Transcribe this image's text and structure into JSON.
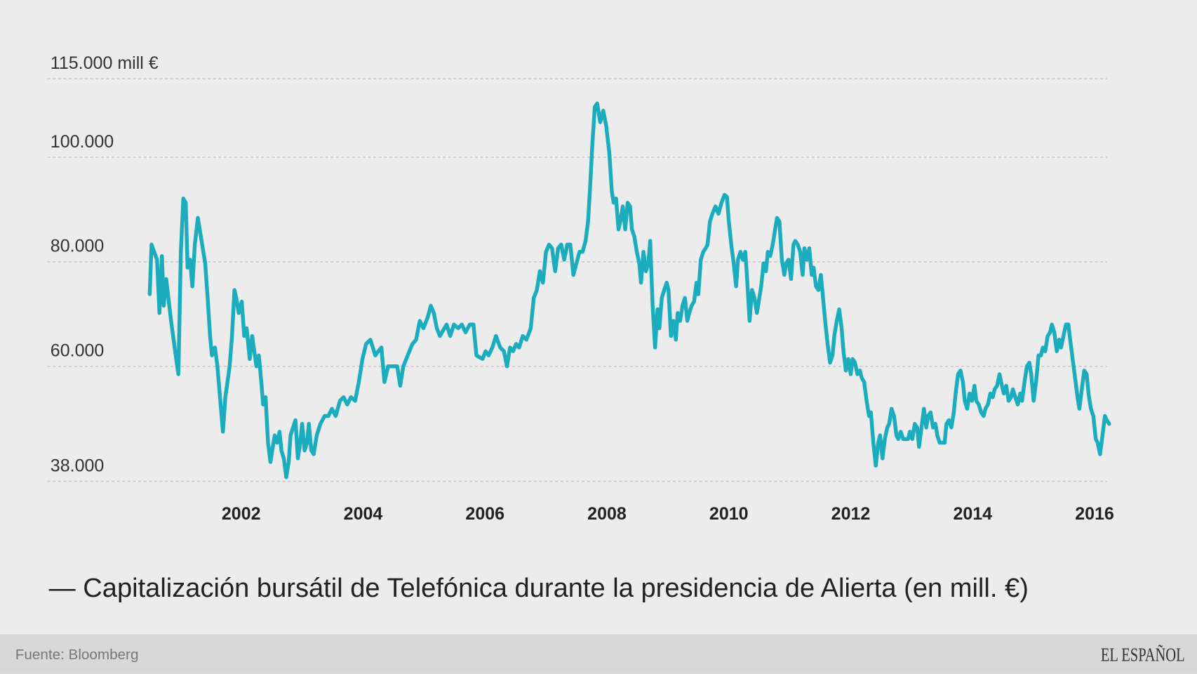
{
  "chart_data": {
    "type": "line",
    "title": "— Capitalización bursátil de Telefónica durante la presidencia de Alierta (en mill. €)",
    "source": "Fuente: Bloomberg",
    "brand": "EL ESPAÑOL",
    "xlim": [
      1998.82,
      2016.24
    ],
    "xticks": [
      2002,
      2004,
      2006,
      2008,
      2010,
      2012,
      2014,
      2016
    ],
    "ylim": [
      38000,
      115000
    ],
    "yticks": [
      {
        "value": 38000,
        "label": "38.000"
      },
      {
        "value": 60000,
        "label": "60.000"
      },
      {
        "value": 80000,
        "label": "80.000"
      },
      {
        "value": 100000,
        "label": "100.000"
      },
      {
        "value": 115000,
        "label": "115.000 mill €"
      }
    ],
    "grid": true,
    "x": [
      2000.5,
      2000.53,
      2000.62,
      2000.66,
      2000.7,
      2000.73,
      2000.77,
      2000.85,
      2000.95,
      2000.97,
      2001.01,
      2001.05,
      2001.09,
      2001.12,
      2001.16,
      2001.2,
      2001.24,
      2001.29,
      2001.36,
      2001.41,
      2001.45,
      2001.49,
      2001.52,
      2001.57,
      2001.61,
      2001.7,
      2001.74,
      2001.81,
      2001.85,
      2001.89,
      2001.92,
      2001.96,
      2002.01,
      2002.05,
      2002.09,
      2002.14,
      2002.18,
      2002.25,
      2002.29,
      2002.33,
      2002.36,
      2002.4,
      2002.44,
      2002.48,
      2002.51,
      2002.55,
      2002.59,
      2002.63,
      2002.66,
      2002.7,
      2002.74,
      2002.78,
      2002.81,
      2002.85,
      2002.89,
      2002.93,
      2002.96,
      2003.0,
      2003.04,
      2003.08,
      2003.11,
      2003.15,
      2003.19,
      2003.24,
      2003.3,
      2003.37,
      2003.43,
      2003.49,
      2003.55,
      2003.62,
      2003.68,
      2003.74,
      2003.8,
      2003.87,
      2003.93,
      2003.99,
      2004.05,
      2004.12,
      2004.2,
      2004.25,
      2004.3,
      2004.35,
      2004.41,
      2004.51,
      2004.56,
      2004.61,
      2004.66,
      2004.76,
      2004.81,
      2004.87,
      2004.93,
      2004.99,
      2005.06,
      2005.11,
      2005.16,
      2005.21,
      2005.26,
      2005.37,
      2005.43,
      2005.49,
      2005.56,
      2005.62,
      2005.68,
      2005.75,
      2005.81,
      2005.86,
      2005.96,
      2006.01,
      2006.06,
      2006.12,
      2006.18,
      2006.25,
      2006.31,
      2006.36,
      2006.41,
      2006.46,
      2006.51,
      2006.56,
      2006.62,
      2006.68,
      2006.75,
      2006.8,
      2006.85,
      2006.9,
      2006.95,
      2007.0,
      2007.05,
      2007.1,
      2007.15,
      2007.2,
      2007.25,
      2007.3,
      2007.35,
      2007.4,
      2007.45,
      2007.5,
      2007.55,
      2007.6,
      2007.65,
      2007.69,
      2007.72,
      2007.76,
      2007.8,
      2007.84,
      2007.89,
      2007.94,
      2007.99,
      2008.04,
      2008.08,
      2008.11,
      2008.15,
      2008.19,
      2008.23,
      2008.26,
      2008.3,
      2008.34,
      2008.38,
      2008.41,
      2008.45,
      2008.49,
      2008.53,
      2008.56,
      2008.6,
      2008.64,
      2008.68,
      2008.71,
      2008.75,
      2008.79,
      2008.83,
      2008.86,
      2008.9,
      2008.94,
      2008.98,
      2009.01,
      2009.05,
      2009.09,
      2009.13,
      2009.16,
      2009.2,
      2009.24,
      2009.28,
      2009.32,
      2009.35,
      2009.39,
      2009.43,
      2009.47,
      2009.5,
      2009.54,
      2009.58,
      2009.62,
      2009.65,
      2009.69,
      2009.73,
      2009.78,
      2009.83,
      2009.88,
      2009.93,
      2009.97,
      2010.0,
      2010.04,
      2010.08,
      2010.12,
      2010.15,
      2010.19,
      2010.23,
      2010.27,
      2010.3,
      2010.34,
      2010.38,
      2010.42,
      2010.46,
      2010.49,
      2010.53,
      2010.57,
      2010.61,
      2010.64,
      2010.68,
      2010.72,
      2010.76,
      2010.79,
      2010.83,
      2010.87,
      2010.91,
      2010.94,
      2010.98,
      2011.02,
      2011.06,
      2011.09,
      2011.13,
      2011.17,
      2011.21,
      2011.24,
      2011.28,
      2011.32,
      2011.36,
      2011.39,
      2011.43,
      2011.47,
      2011.51,
      2011.54,
      2011.58,
      2011.62,
      2011.66,
      2011.7,
      2011.73,
      2011.77,
      2011.81,
      2011.85,
      2011.88,
      2011.92,
      2011.96,
      2012.0,
      2012.03,
      2012.07,
      2012.11,
      2012.15,
      2012.18,
      2012.22,
      2012.26,
      2012.3,
      2012.33,
      2012.37,
      2012.41,
      2012.45,
      2012.48,
      2012.52,
      2012.56,
      2012.6,
      2012.63,
      2012.67,
      2012.71,
      2012.75,
      2012.78,
      2012.82,
      2012.86,
      2012.94,
      2012.97,
      2013.01,
      2013.05,
      2013.09,
      2013.12,
      2013.16,
      2013.2,
      2013.24,
      2013.27,
      2013.31,
      2013.35,
      2013.39,
      2013.42,
      2013.46,
      2013.54,
      2013.57,
      2013.61,
      2013.65,
      2013.69,
      2013.72,
      2013.76,
      2013.8,
      2013.84,
      2013.87,
      2013.91,
      2013.95,
      2013.99,
      2014.03,
      2014.06,
      2014.1,
      2014.14,
      2014.18,
      2014.21,
      2014.25,
      2014.29,
      2014.33,
      2014.36,
      2014.4,
      2014.44,
      2014.48,
      2014.51,
      2014.55,
      2014.59,
      2014.63,
      2014.66,
      2014.7,
      2014.74,
      2014.78,
      2014.81,
      2014.85,
      2014.89,
      2014.93,
      2014.96,
      2015.0,
      2015.04,
      2015.08,
      2015.12,
      2015.15,
      2015.19,
      2015.23,
      2015.27,
      2015.3,
      2015.34,
      2015.38,
      2015.42,
      2015.45,
      2015.49,
      2015.53,
      2015.57,
      2015.6,
      2015.64,
      2015.68,
      2015.72,
      2015.75,
      2015.79,
      2015.83,
      2015.87,
      2015.9,
      2015.94,
      2015.98,
      2016.02,
      2016.05,
      2016.09,
      2016.13,
      2016.17,
      2016.2,
      2016.24
    ],
    "series": [
      {
        "color": "#1badbd",
        "values": [
          73800,
          83300,
          80400,
          70200,
          81100,
          71600,
          76700,
          68700,
          60000,
          58500,
          81900,
          92100,
          91300,
          78900,
          80400,
          75300,
          83300,
          88400,
          83300,
          79700,
          73100,
          65800,
          62100,
          63600,
          60000,
          47500,
          54100,
          60000,
          65800,
          74600,
          73100,
          70200,
          72400,
          65800,
          67300,
          61400,
          65800,
          60000,
          62100,
          57000,
          52700,
          54100,
          45400,
          41700,
          43900,
          46800,
          45400,
          47500,
          43900,
          42400,
          38800,
          41700,
          46800,
          48300,
          49700,
          42400,
          44600,
          49000,
          43900,
          45400,
          49000,
          43900,
          43200,
          46800,
          49000,
          50500,
          50500,
          51900,
          50500,
          53400,
          54100,
          52700,
          54100,
          53400,
          57000,
          61400,
          64300,
          65100,
          62100,
          62900,
          63600,
          57000,
          60000,
          60000,
          60000,
          56300,
          60000,
          62900,
          64300,
          65100,
          68700,
          67300,
          69400,
          71600,
          70200,
          67300,
          65800,
          68000,
          65800,
          68000,
          67300,
          68000,
          66500,
          68000,
          68000,
          62100,
          61400,
          62900,
          62100,
          63600,
          65800,
          63600,
          62900,
          60000,
          63600,
          62900,
          64300,
          63600,
          65800,
          65100,
          67300,
          73100,
          74600,
          78200,
          76000,
          81900,
          83300,
          82600,
          78200,
          82600,
          83300,
          80400,
          83300,
          83300,
          77500,
          79700,
          81900,
          81900,
          84000,
          87700,
          93500,
          102300,
          109600,
          110300,
          106700,
          108900,
          105900,
          100800,
          93500,
          91300,
          92100,
          86200,
          88400,
          90600,
          86200,
          91300,
          90600,
          86200,
          84800,
          81900,
          79700,
          76000,
          81900,
          78200,
          79700,
          84000,
          71600,
          63600,
          70900,
          67300,
          73100,
          74600,
          76000,
          74600,
          65800,
          68700,
          65100,
          70200,
          68700,
          71600,
          73100,
          68700,
          70200,
          71600,
          72400,
          76000,
          73800,
          80400,
          81900,
          82600,
          83300,
          87700,
          89200,
          90600,
          89200,
          91300,
          92800,
          92400,
          87700,
          83300,
          79700,
          75300,
          80400,
          81900,
          80400,
          81900,
          76700,
          68700,
          74600,
          73100,
          70200,
          72400,
          75300,
          79700,
          78200,
          81900,
          81100,
          83300,
          86200,
          88400,
          87700,
          80400,
          77500,
          79700,
          80400,
          76700,
          83300,
          84000,
          83300,
          81900,
          77500,
          82600,
          80400,
          82600,
          77500,
          78900,
          75300,
          74600,
          77500,
          73800,
          68700,
          64300,
          60700,
          62100,
          65800,
          68700,
          70900,
          67300,
          62900,
          59200,
          61400,
          58500,
          61400,
          60700,
          58500,
          59200,
          57800,
          57000,
          53400,
          50500,
          51200,
          45400,
          41000,
          45400,
          46800,
          42400,
          46100,
          48300,
          49000,
          51900,
          50500,
          46800,
          46100,
          47500,
          46100,
          46100,
          47500,
          46100,
          49000,
          48300,
          44600,
          48300,
          51900,
          48300,
          50500,
          51200,
          48300,
          49000,
          46800,
          45400,
          45400,
          49000,
          49700,
          48300,
          51200,
          54800,
          58500,
          59200,
          57000,
          53400,
          51900,
          54800,
          53400,
          56300,
          53400,
          52700,
          51200,
          50500,
          51900,
          52700,
          54800,
          54100,
          55600,
          56300,
          58500,
          56300,
          54800,
          56300,
          53400,
          54100,
          55600,
          54100,
          52700,
          54800,
          53400,
          57000,
          60000,
          60700,
          58500,
          53400,
          57000,
          62100,
          62100,
          63600,
          62900,
          65800,
          66500,
          68000,
          66500,
          62900,
          65100,
          63600,
          65800,
          68000,
          68000,
          65100,
          61400,
          57800,
          54100,
          51900,
          55600,
          59200,
          58500,
          54800,
          51900,
          50500,
          46100,
          45400,
          43200,
          46800,
          50500,
          49700,
          49000
        ]
      }
    ]
  }
}
